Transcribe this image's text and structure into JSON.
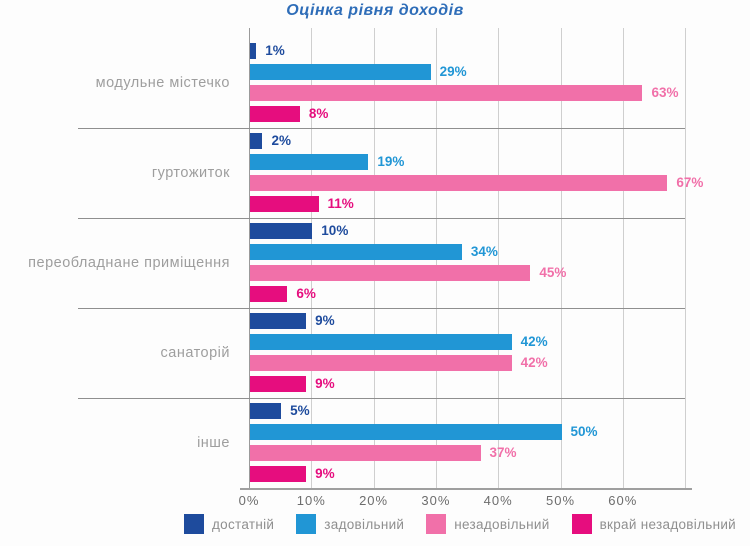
{
  "title_color": "#2e6db8",
  "chart_data": {
    "type": "bar",
    "orientation": "horizontal",
    "title": "Оцінка рівня доходів",
    "categories": [
      "модульне містечко",
      "гуртожиток",
      "переобладнане приміщення",
      "санаторій",
      "інше"
    ],
    "series": [
      {
        "name": "достатній",
        "color": "#1e4b9d",
        "values": [
          1,
          2,
          10,
          9,
          5
        ]
      },
      {
        "name": "задовільний",
        "color": "#2196d5",
        "values": [
          29,
          19,
          34,
          42,
          50
        ]
      },
      {
        "name": "незадовільний",
        "color": "#f170a9",
        "values": [
          63,
          67,
          45,
          42,
          37
        ]
      },
      {
        "name": "вкрай незадовільний",
        "color": "#e60d7e",
        "values": [
          8,
          11,
          6,
          9,
          9
        ]
      }
    ],
    "value_label_suffix": "%",
    "x_ticks": [
      "0%",
      "10%",
      "20%",
      "30%",
      "40%",
      "50%",
      "60%"
    ],
    "xlim": [
      0,
      70
    ],
    "grid": "vertical",
    "legend_position": "bottom"
  }
}
